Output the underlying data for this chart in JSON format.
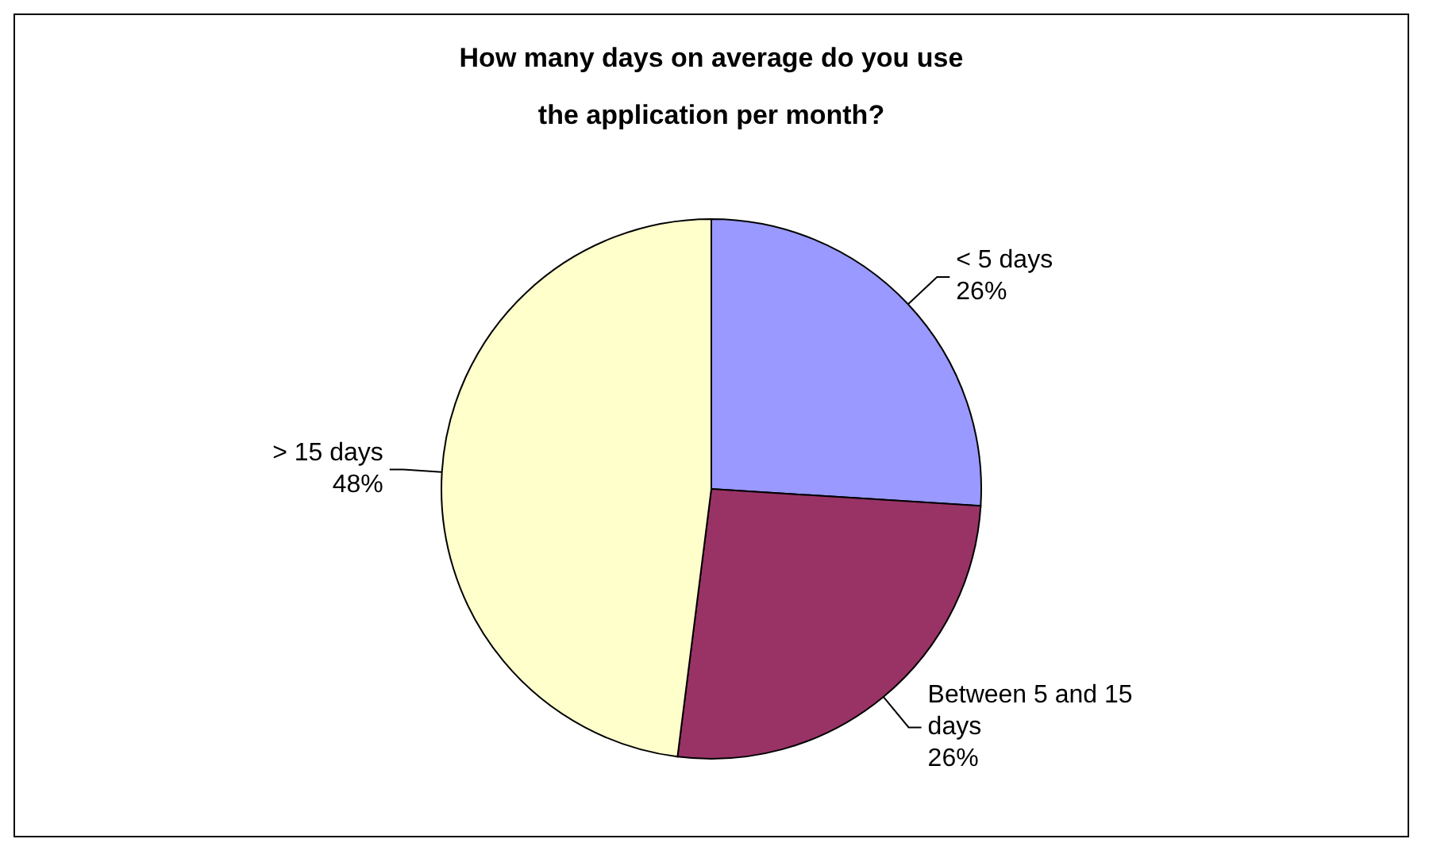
{
  "chart_data": {
    "type": "pie",
    "title": "How many days on average do you use the application per month?",
    "categories": [
      "< 5 days",
      "Between 5 and 15 days",
      "> 15 days"
    ],
    "values": [
      26,
      26,
      48
    ],
    "colors": [
      "#9999ff",
      "#993366",
      "#ffffcc"
    ],
    "value_labels": [
      "26%",
      "26%",
      "48%"
    ],
    "legend": false
  }
}
